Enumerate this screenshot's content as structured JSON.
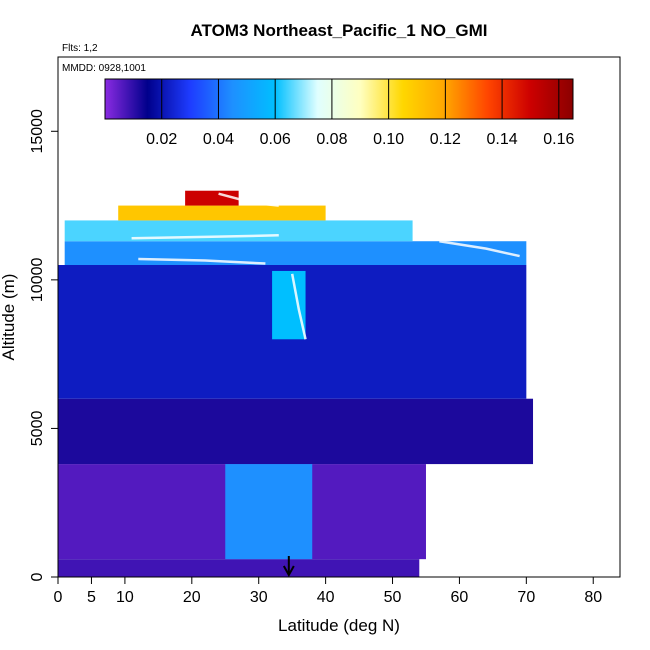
{
  "chart_data": {
    "type": "heatmap",
    "title": "ATOM3 Northeast_Pacific_1 NO_GMI",
    "annotations": [
      "Flts: 1,2",
      "MMDD: 0928,1001"
    ],
    "xlabel": "Latitude (deg N)",
    "ylabel": "Altitude (m)",
    "xlim": [
      0,
      84
    ],
    "ylim": [
      0,
      17500
    ],
    "x_ticks": [
      0,
      5,
      10,
      20,
      30,
      40,
      50,
      60,
      70,
      80
    ],
    "y_ticks": [
      0,
      5000,
      10000,
      15000
    ],
    "colorbar": {
      "range": [
        0.0,
        0.165
      ],
      "ticks": [
        0.02,
        0.04,
        0.06,
        0.08,
        0.1,
        0.12,
        0.14,
        0.16
      ],
      "tick_labels": [
        "0.02",
        "0.04",
        "0.06",
        "0.08",
        "0.10",
        "0.12",
        "0.14",
        "0.16"
      ],
      "colors": [
        "#8a2be2",
        "#00008b",
        "#1e3cff",
        "#1e90ff",
        "#00bfff",
        "#e0ffff",
        "#ffffc0",
        "#ffd700",
        "#ffa500",
        "#ff4500",
        "#cc0000",
        "#8b0000"
      ]
    },
    "arrow_latitude": 34.5,
    "regions": [
      {
        "y": [
          0,
          600
        ],
        "lat": [
          0,
          54
        ],
        "value": 0.008
      },
      {
        "y": [
          600,
          3800
        ],
        "lat": [
          0,
          55
        ],
        "value": 0.006
      },
      {
        "y": [
          3800,
          6000
        ],
        "lat": [
          0,
          71
        ],
        "value": 0.012
      },
      {
        "y": [
          6000,
          10500
        ],
        "lat": [
          0,
          70
        ],
        "value": 0.022
      },
      {
        "y": [
          10500,
          11300
        ],
        "lat": [
          1,
          70
        ],
        "value": 0.045
      },
      {
        "y": [
          11300,
          12000
        ],
        "lat": [
          1,
          53
        ],
        "value": 0.065
      },
      {
        "y": [
          12000,
          12500
        ],
        "lat": [
          9,
          40
        ],
        "value": 0.11
      },
      {
        "y": [
          12500,
          13000
        ],
        "lat": [
          19,
          27
        ],
        "value": 0.15
      },
      {
        "y": [
          600,
          3800
        ],
        "lat": [
          25,
          38
        ],
        "value": 0.045
      },
      {
        "y": [
          8000,
          10300
        ],
        "lat": [
          32,
          37
        ],
        "value": 0.06
      }
    ],
    "flight_tracks": [
      {
        "lat": [
          11,
          23,
          33
        ],
        "alt": [
          11400,
          11450,
          11500
        ]
      },
      {
        "lat": [
          12,
          22,
          31
        ],
        "alt": [
          10700,
          10650,
          10550
        ]
      },
      {
        "lat": [
          57,
          64,
          69
        ],
        "alt": [
          11300,
          11050,
          10800
        ]
      },
      {
        "lat": [
          35,
          36,
          37
        ],
        "alt": [
          10200,
          9000,
          8000
        ]
      },
      {
        "lat": [
          24,
          29,
          33
        ],
        "alt": [
          12900,
          12600,
          12500
        ]
      }
    ]
  }
}
